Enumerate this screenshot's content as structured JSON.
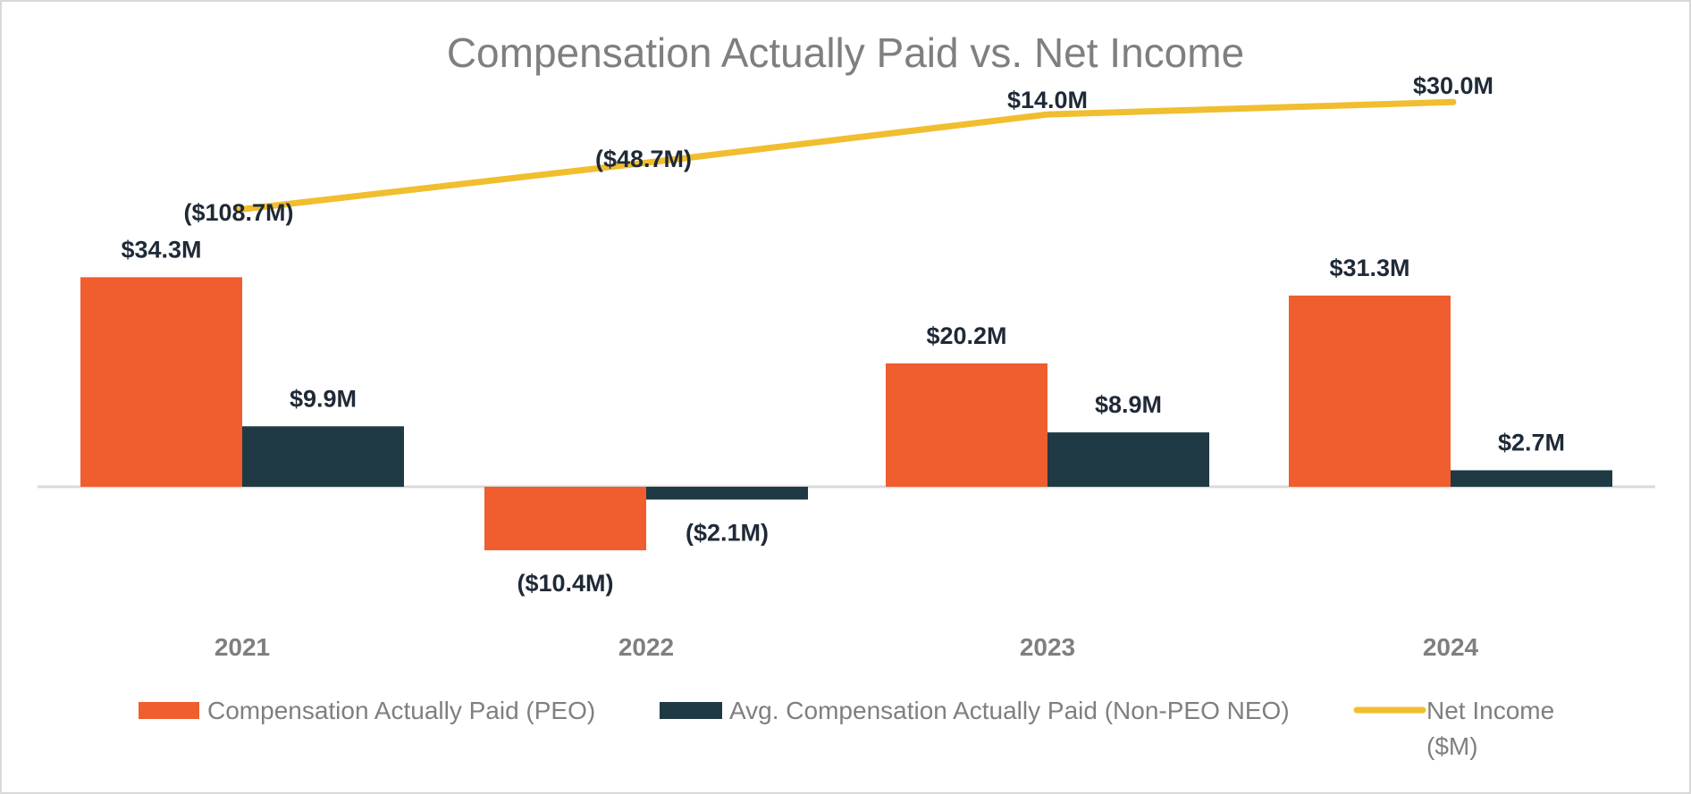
{
  "chart_data": {
    "type": "bar",
    "title": "Compensation Actually Paid vs. Net Income",
    "categories": [
      "2021",
      "2022",
      "2023",
      "2024"
    ],
    "series": [
      {
        "name": "Compensation Actually Paid (PEO)",
        "type": "bar",
        "color": "#f05d2e",
        "values": [
          34.3,
          -10.4,
          20.2,
          31.3
        ],
        "labels": [
          "$34.3M",
          "($10.4M)",
          "$20.2M",
          "$31.3M"
        ]
      },
      {
        "name": "Avg. Compensation Actually Paid (Non-PEO NEO)",
        "type": "bar",
        "color": "#1f3a44",
        "values": [
          9.9,
          -2.1,
          8.9,
          2.7
        ],
        "labels": [
          "$9.9M",
          "($2.1M)",
          "$8.9M",
          "$2.7M"
        ]
      },
      {
        "name": "Net Income ($M)",
        "name_lines": [
          "Net Income",
          "($M)"
        ],
        "type": "line",
        "color": "#f0be2e",
        "values": [
          -108.7,
          -48.7,
          14.0,
          30.0
        ],
        "labels": [
          "($108.7M)",
          "($48.7M)",
          "$14.0M",
          "$30.0M"
        ]
      }
    ],
    "legend_position": "bottom",
    "grid": false
  }
}
